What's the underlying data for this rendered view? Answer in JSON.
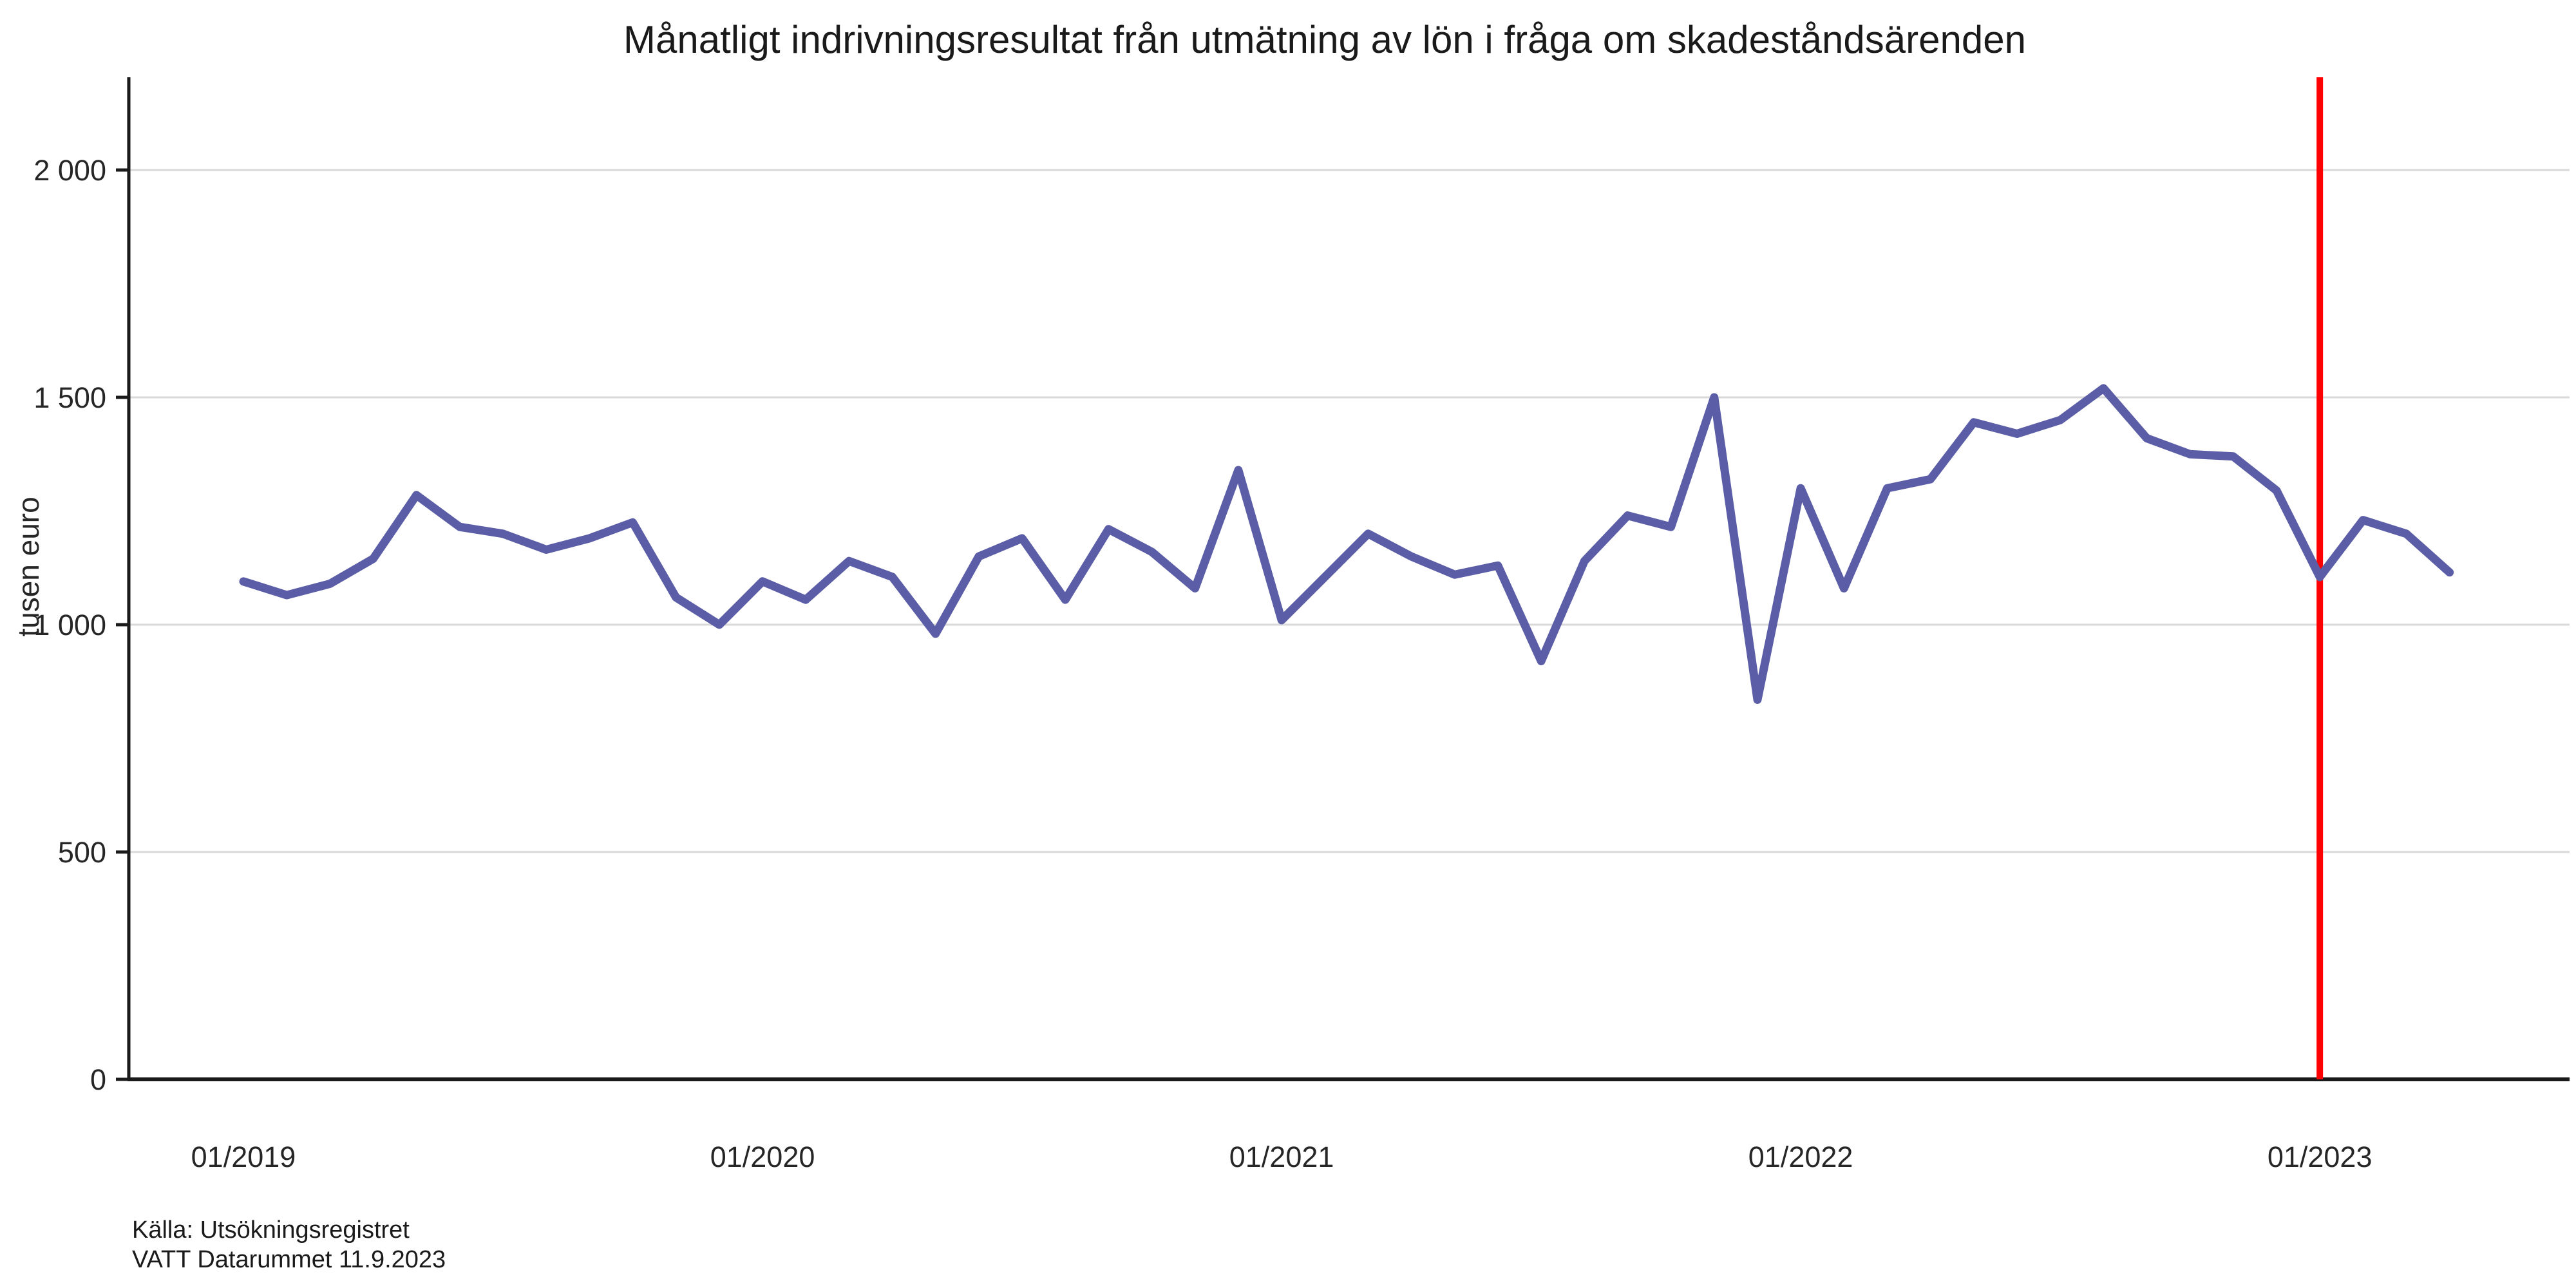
{
  "title": "Månatligt indrivningsresultat från utmätning av lön i fråga om skadeståndsärenden",
  "source": {
    "line1": "Källa: Utsökningsregistret",
    "line2": "VATT Datarummet 11.9.2023"
  },
  "chart_data": {
    "type": "line",
    "title": "Månatligt indrivningsresultat från utmätning av lön i fråga om skadeståndsärenden",
    "xlabel": "",
    "ylabel": "tusen euro",
    "ylim": [
      0,
      2200
    ],
    "grid": true,
    "legend_position": "none",
    "y_ticks": [
      0,
      500,
      1000,
      1500,
      2000
    ],
    "y_tick_labels": [
      "0",
      "500",
      "1 000",
      "1 500",
      "2 000"
    ],
    "x_tick_labels": [
      "01/2019",
      "01/2020",
      "01/2021",
      "01/2022",
      "01/2023"
    ],
    "x_tick_indices": [
      0,
      12,
      24,
      36,
      48
    ],
    "series_name": "indrivningsresultat",
    "series_color": "#5b5ea6",
    "reference_line": {
      "x_index": 48,
      "label": "01/2023",
      "color": "#ff0000"
    },
    "months": [
      "01/2019",
      "02/2019",
      "03/2019",
      "04/2019",
      "05/2019",
      "06/2019",
      "07/2019",
      "08/2019",
      "09/2019",
      "10/2019",
      "11/2019",
      "12/2019",
      "01/2020",
      "02/2020",
      "03/2020",
      "04/2020",
      "05/2020",
      "06/2020",
      "07/2020",
      "08/2020",
      "09/2020",
      "10/2020",
      "11/2020",
      "12/2020",
      "01/2021",
      "02/2021",
      "03/2021",
      "04/2021",
      "05/2021",
      "06/2021",
      "07/2021",
      "08/2021",
      "09/2021",
      "10/2021",
      "11/2021",
      "12/2021",
      "01/2022",
      "02/2022",
      "03/2022",
      "04/2022",
      "05/2022",
      "06/2022",
      "07/2022",
      "08/2022",
      "09/2022",
      "10/2022",
      "11/2022",
      "12/2022",
      "01/2023",
      "02/2023",
      "03/2023",
      "04/2023"
    ],
    "values": [
      1095,
      1065,
      1090,
      1145,
      1285,
      1215,
      1200,
      1165,
      1190,
      1225,
      1060,
      1000,
      1095,
      1055,
      1140,
      1105,
      980,
      1150,
      1190,
      1055,
      1210,
      1160,
      1080,
      1340,
      1010,
      1105,
      1200,
      1150,
      1110,
      1130,
      920,
      1140,
      1240,
      1215,
      1500,
      835,
      1300,
      1080,
      1300,
      1320,
      1445,
      1420,
      1450,
      1520,
      1410,
      1375,
      1370,
      1295,
      1105,
      1230,
      1200,
      1115
    ]
  }
}
